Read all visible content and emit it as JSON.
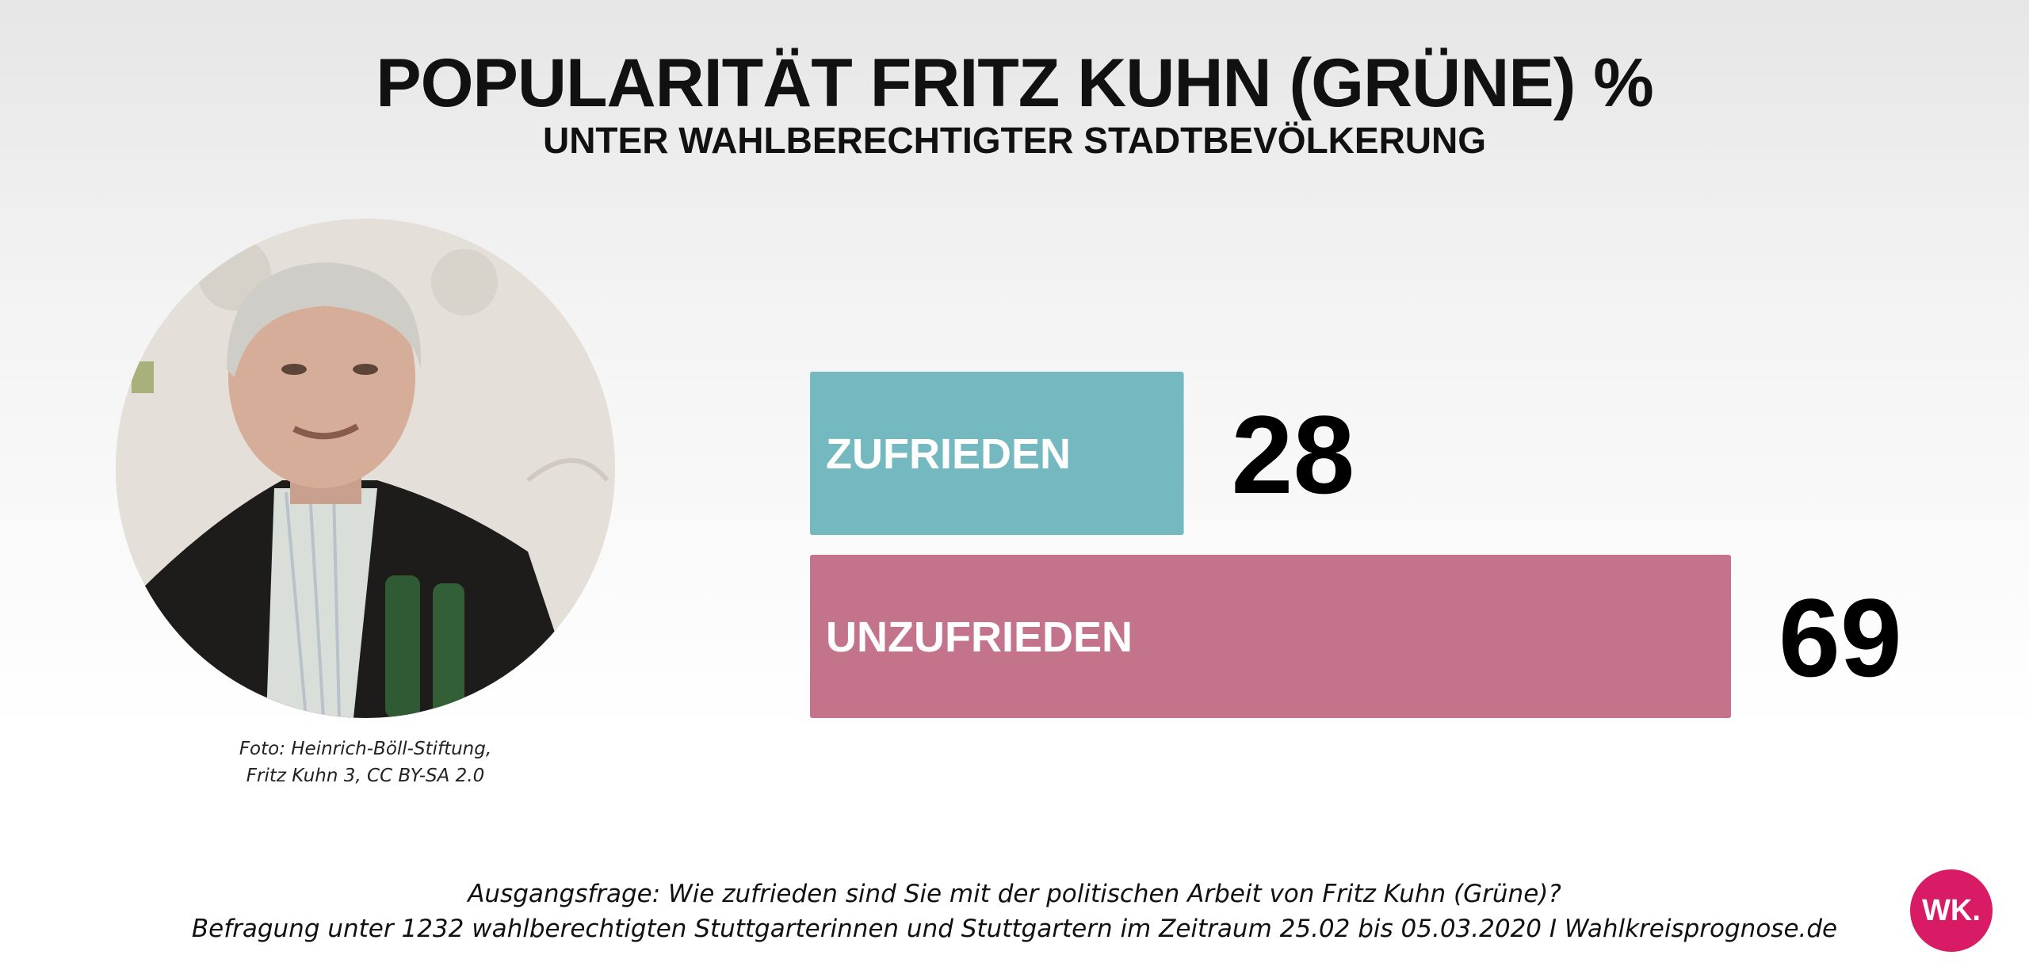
{
  "chart_data": {
    "type": "bar",
    "orientation": "horizontal",
    "title": "POPULARITÄT FRITZ KUHN (GRÜNE) %",
    "subtitle": "UNTER WAHLBERECHTIGTER STADTBEVÖLKERUNG",
    "categories": [
      "ZUFRIEDEN",
      "UNZUFRIEDEN"
    ],
    "values": [
      28,
      69
    ],
    "colors": [
      "#74b8c0",
      "#c3748b"
    ],
    "xlim": [
      0,
      69
    ],
    "grid": false,
    "legend": "none"
  },
  "photo": {
    "caption_line1": "Foto: Heinrich-Böll-Stiftung,",
    "caption_line2": "Fritz Kuhn 3, CC BY-SA 2.0"
  },
  "footer": {
    "line1": "Ausgangsfrage: Wie zufrieden sind Sie mit der politischen Arbeit von Fritz Kuhn (Grüne)?",
    "line2": "Befragung unter 1232 wahlberechtigten Stuttgarterinnen und Stuttgartern im Zeitraum 25.02 bis 05.03.2020 I Wahlkreisprognose.de"
  },
  "logo": {
    "text": "WK.",
    "color": "#d81b64"
  }
}
